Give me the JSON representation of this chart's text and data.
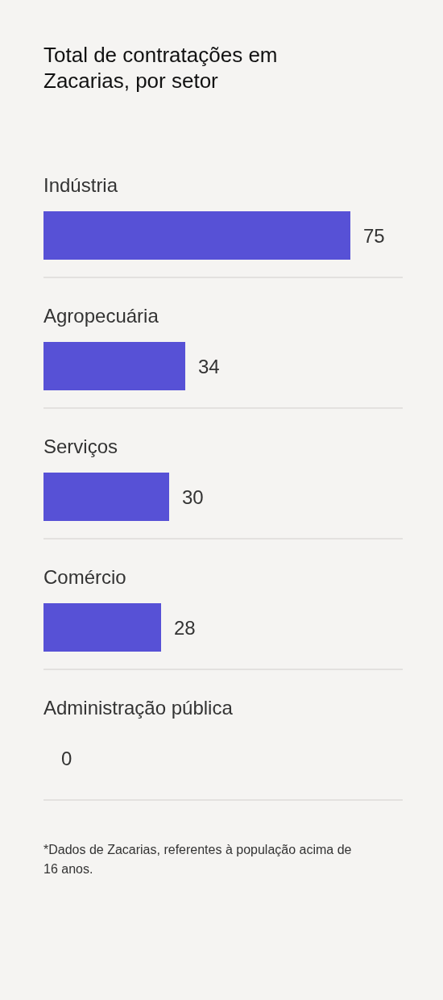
{
  "chart_data": {
    "type": "bar",
    "orientation": "horizontal",
    "title": "Total de contratações em Zacarias, por setor",
    "categories": [
      "Indústria",
      "Agropecuária",
      "Serviços",
      "Comércio",
      "Administração pública"
    ],
    "values": [
      75,
      34,
      30,
      28,
      0
    ],
    "color": "#5751d6",
    "data_labels": true,
    "annotations": [
      "*Dados de Zacarias, referentes à população acima de 16 anos."
    ]
  }
}
